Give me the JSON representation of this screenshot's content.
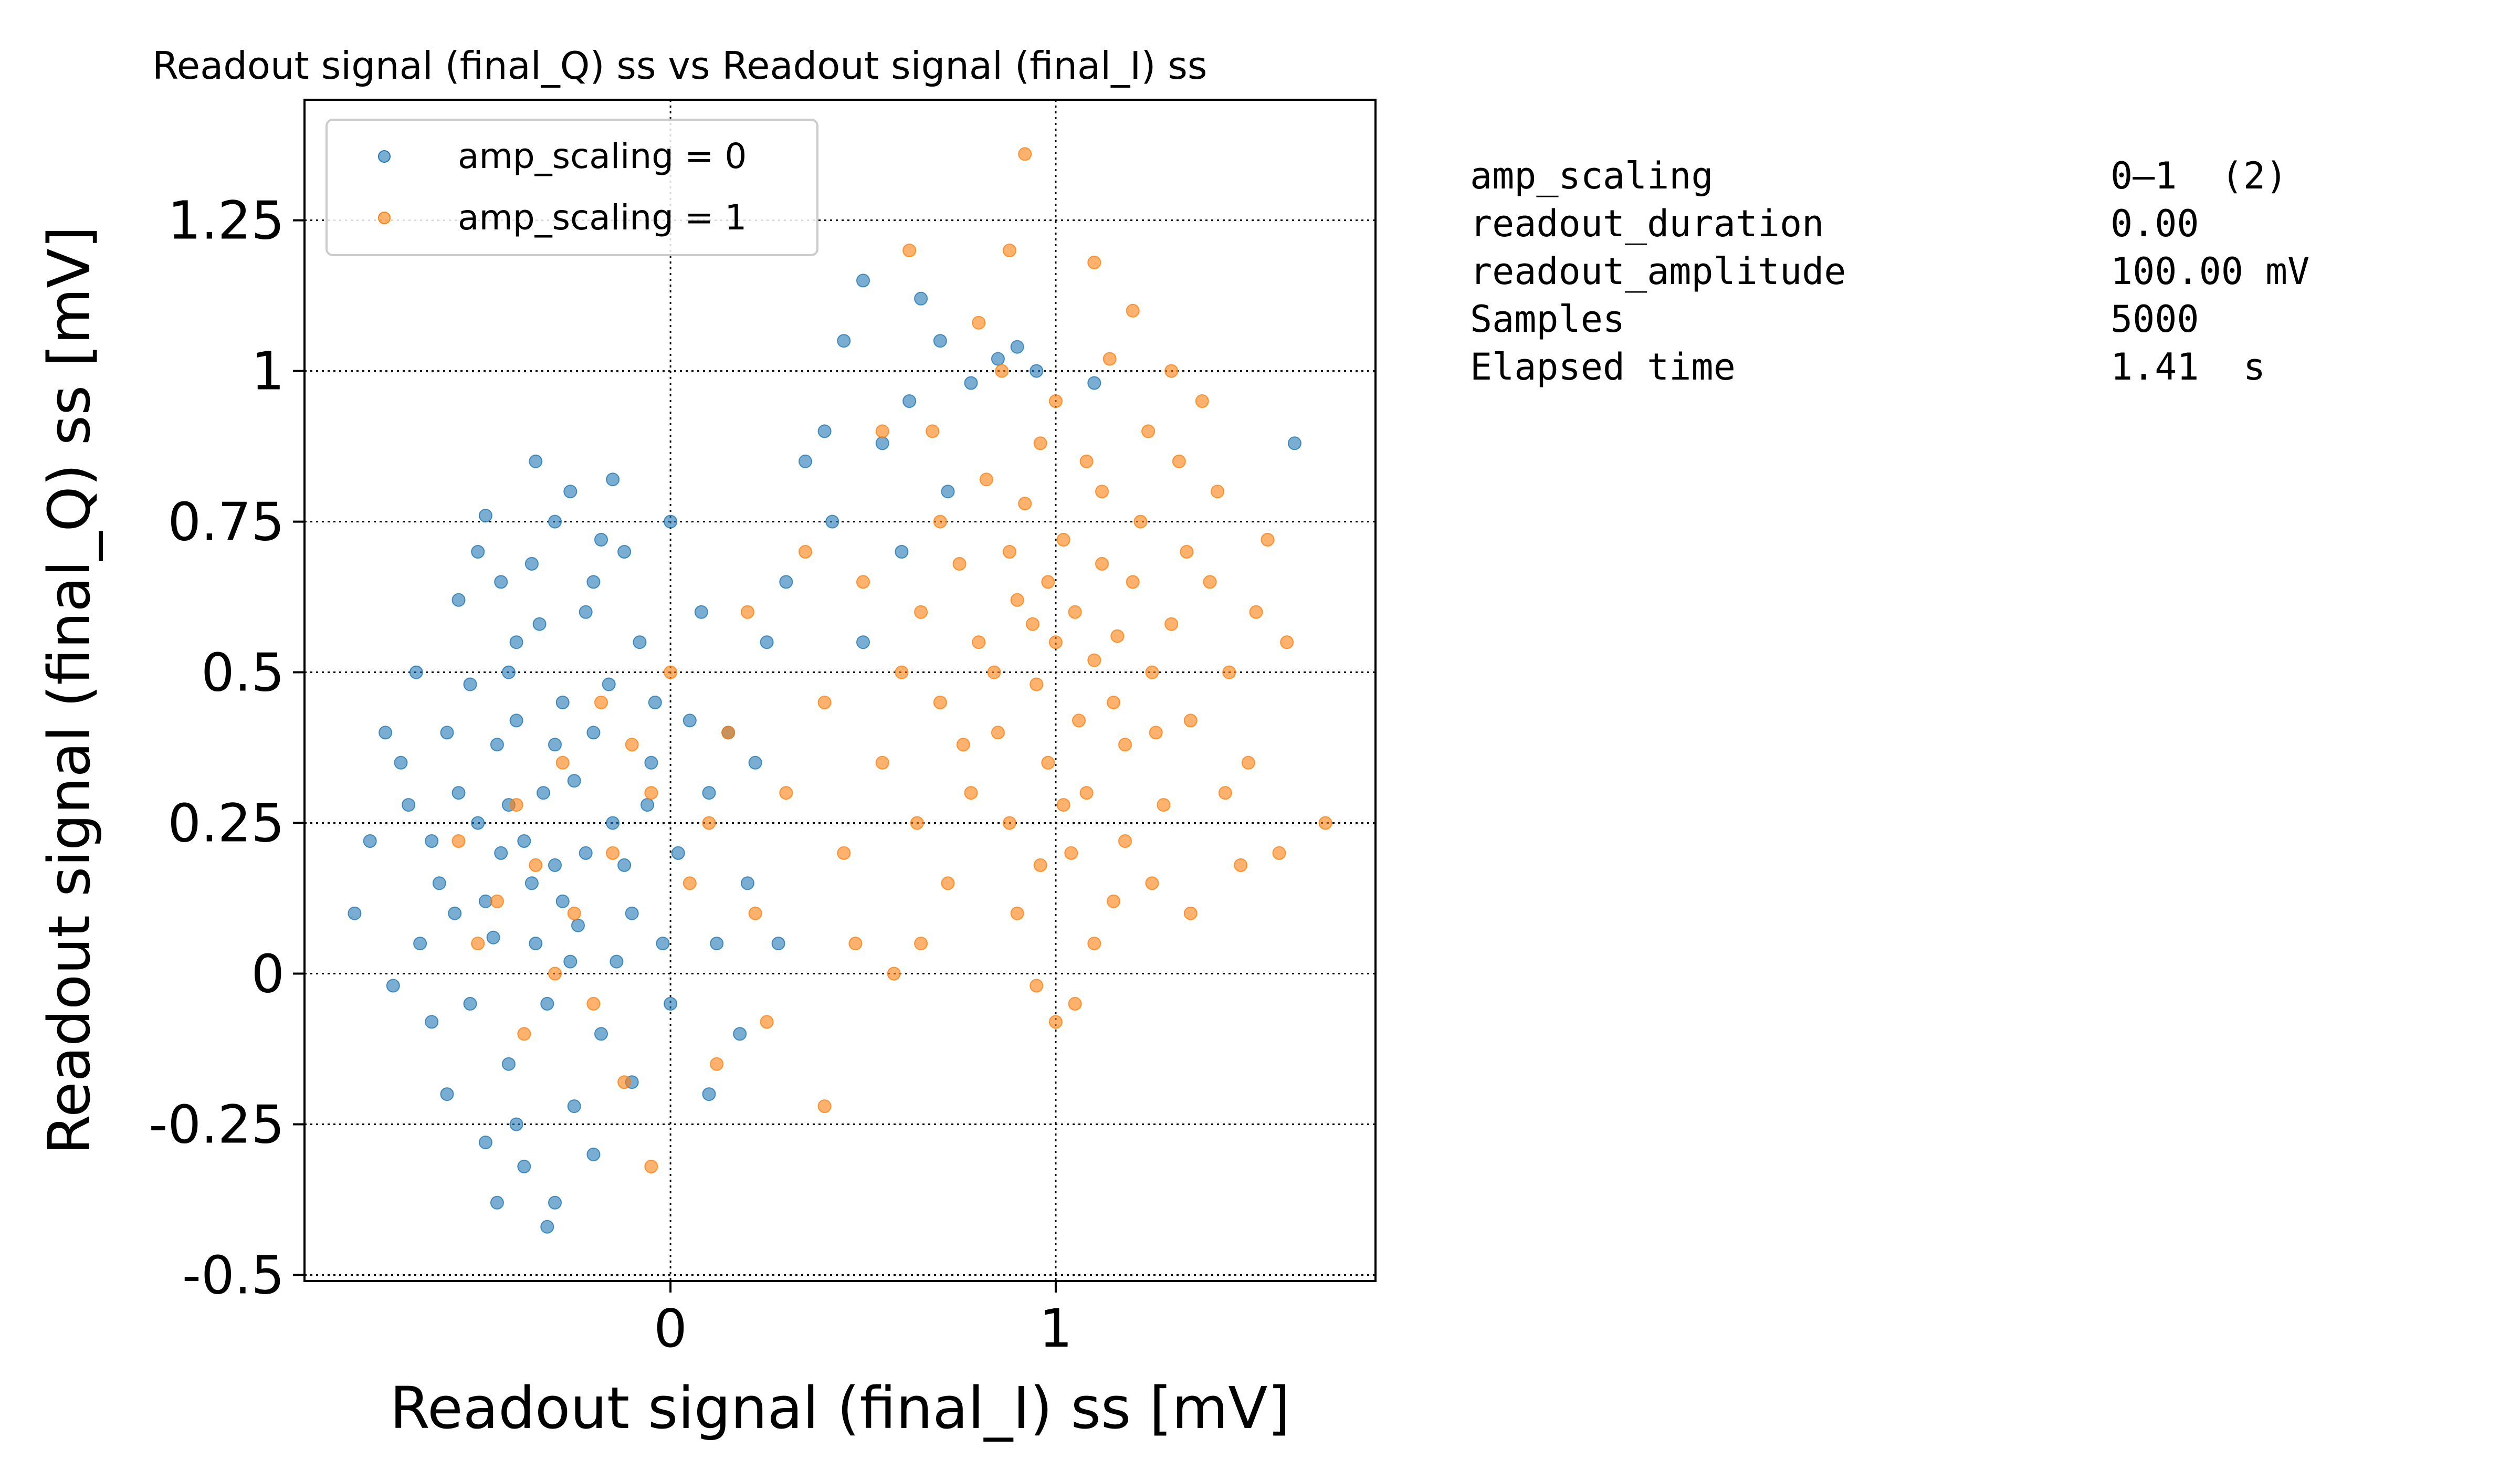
{
  "chart_data": {
    "type": "scatter",
    "title": "Readout signal (final_Q) ss vs Readout signal (final_I) ss",
    "xlabel": "Readout signal (final_I) ss [mV]",
    "ylabel": "Readout signal (final_Q) ss [mV]",
    "xlim": [
      -0.95,
      1.83
    ],
    "ylim": [
      -0.51,
      1.45
    ],
    "xticks": [
      {
        "v": 0,
        "label": "0"
      },
      {
        "v": 1,
        "label": "1"
      }
    ],
    "yticks": [
      {
        "v": -0.5,
        "label": "-0.5"
      },
      {
        "v": -0.25,
        "label": "-0.25"
      },
      {
        "v": 0,
        "label": "0"
      },
      {
        "v": 0.25,
        "label": "0.25"
      },
      {
        "v": 0.5,
        "label": "0.5"
      },
      {
        "v": 0.75,
        "label": "0.75"
      },
      {
        "v": 1,
        "label": "1"
      },
      {
        "v": 1.25,
        "label": "1.25"
      }
    ],
    "grid": true,
    "legend_position": "top-left",
    "series": [
      {
        "name": "amp_scaling = 0",
        "color": "#1f77b4",
        "points": [
          [
            -0.38,
            0.22
          ],
          [
            -0.42,
            0.28
          ],
          [
            -0.3,
            0.18
          ],
          [
            -0.25,
            0.32
          ],
          [
            -0.48,
            0.12
          ],
          [
            -0.2,
            0.4
          ],
          [
            -0.35,
            0.05
          ],
          [
            -0.55,
            0.3
          ],
          [
            -0.15,
            0.25
          ],
          [
            -0.28,
            0.45
          ],
          [
            -0.45,
            0.38
          ],
          [
            -0.6,
            0.15
          ],
          [
            -0.1,
            0.1
          ],
          [
            -0.32,
            -0.05
          ],
          [
            -0.4,
            0.55
          ],
          [
            -0.22,
            0.6
          ],
          [
            -0.52,
            0.48
          ],
          [
            -0.05,
            0.35
          ],
          [
            -0.65,
            0.05
          ],
          [
            -0.18,
            -0.1
          ],
          [
            -0.36,
            0.68
          ],
          [
            -0.3,
            0.75
          ],
          [
            -0.48,
            0.76
          ],
          [
            -0.42,
            -0.15
          ],
          [
            -0.25,
            -0.22
          ],
          [
            -0.7,
            0.35
          ],
          [
            -0.78,
            0.22
          ],
          [
            -0.82,
            0.1
          ],
          [
            -0.62,
            -0.08
          ],
          [
            -0.08,
            0.55
          ],
          [
            0.02,
            0.2
          ],
          [
            0.05,
            0.42
          ],
          [
            0.1,
            0.3
          ],
          [
            -0.12,
            0.7
          ],
          [
            -0.55,
            0.62
          ],
          [
            -0.38,
            -0.32
          ],
          [
            -0.3,
            -0.38
          ],
          [
            -0.45,
            -0.38
          ],
          [
            -0.2,
            -0.3
          ],
          [
            -0.1,
            -0.18
          ],
          [
            0.0,
            -0.05
          ],
          [
            0.12,
            0.05
          ],
          [
            -0.58,
            -0.2
          ],
          [
            -0.72,
            -0.02
          ],
          [
            -0.66,
            0.5
          ],
          [
            -0.5,
            0.7
          ],
          [
            -0.35,
            0.85
          ],
          [
            -0.15,
            0.82
          ],
          [
            0.0,
            0.75
          ],
          [
            0.08,
            0.6
          ],
          [
            0.15,
            0.4
          ],
          [
            0.2,
            0.15
          ],
          [
            0.25,
            0.55
          ],
          [
            0.3,
            0.65
          ],
          [
            0.35,
            0.85
          ],
          [
            0.42,
            0.75
          ],
          [
            0.5,
            0.55
          ],
          [
            0.55,
            0.88
          ],
          [
            0.62,
            0.95
          ],
          [
            0.7,
            1.05
          ],
          [
            0.45,
            1.05
          ],
          [
            0.5,
            1.15
          ],
          [
            0.65,
            1.12
          ],
          [
            0.78,
            0.98
          ],
          [
            0.85,
            1.02
          ],
          [
            0.4,
            0.9
          ],
          [
            0.22,
            0.35
          ],
          [
            0.28,
            0.05
          ],
          [
            0.18,
            -0.1
          ],
          [
            0.1,
            -0.2
          ],
          [
            -0.28,
            0.12
          ],
          [
            -0.33,
            0.3
          ],
          [
            -0.44,
            0.2
          ],
          [
            -0.24,
            0.08
          ],
          [
            -0.16,
            0.48
          ],
          [
            -0.4,
            0.42
          ],
          [
            -0.26,
            0.02
          ],
          [
            -0.5,
            0.25
          ],
          [
            -0.12,
            0.18
          ],
          [
            -0.34,
            0.58
          ],
          [
            -0.46,
            0.06
          ],
          [
            -0.06,
            0.28
          ],
          [
            -0.58,
            0.4
          ],
          [
            -0.2,
            0.65
          ],
          [
            -0.36,
            0.15
          ],
          [
            -0.3,
            0.38
          ],
          [
            -0.52,
            -0.05
          ],
          [
            -0.14,
            0.02
          ],
          [
            -0.42,
            0.5
          ],
          [
            -0.22,
            0.2
          ],
          [
            1.62,
            0.88
          ],
          [
            0.95,
            1.0
          ],
          [
            1.1,
            0.98
          ],
          [
            0.9,
            1.04
          ],
          [
            0.72,
            0.8
          ],
          [
            0.6,
            0.7
          ],
          [
            -0.62,
            0.22
          ],
          [
            -0.56,
            0.1
          ],
          [
            -0.68,
            0.28
          ],
          [
            -0.74,
            0.4
          ],
          [
            -0.04,
            0.45
          ],
          [
            -0.02,
            0.05
          ],
          [
            -0.4,
            -0.25
          ],
          [
            -0.32,
            -0.42
          ],
          [
            -0.48,
            -0.28
          ],
          [
            -0.18,
            0.72
          ],
          [
            -0.26,
            0.8
          ],
          [
            -0.44,
            0.65
          ]
        ]
      },
      {
        "name": "amp_scaling = 1",
        "color": "#ff7f0e",
        "points": [
          [
            1.0,
            0.55
          ],
          [
            1.05,
            0.6
          ],
          [
            0.95,
            0.48
          ],
          [
            1.1,
            0.52
          ],
          [
            0.9,
            0.62
          ],
          [
            1.15,
            0.45
          ],
          [
            0.85,
            0.4
          ],
          [
            1.2,
            0.65
          ],
          [
            0.98,
            0.35
          ],
          [
            1.02,
            0.72
          ],
          [
            0.8,
            0.55
          ],
          [
            1.25,
            0.5
          ],
          [
            0.92,
            0.78
          ],
          [
            1.08,
            0.3
          ],
          [
            0.75,
            0.68
          ],
          [
            1.3,
            0.58
          ],
          [
            1.12,
            0.8
          ],
          [
            0.88,
            0.25
          ],
          [
            1.18,
            0.38
          ],
          [
            0.7,
            0.45
          ],
          [
            1.35,
            0.42
          ],
          [
            0.96,
            0.88
          ],
          [
            1.04,
            0.2
          ],
          [
            0.82,
            0.82
          ],
          [
            1.22,
            0.75
          ],
          [
            0.65,
            0.6
          ],
          [
            1.4,
            0.65
          ],
          [
            1.0,
            0.95
          ],
          [
            0.78,
            0.3
          ],
          [
            1.28,
            0.28
          ],
          [
            0.6,
            0.5
          ],
          [
            1.45,
            0.5
          ],
          [
            0.9,
            0.1
          ],
          [
            1.1,
            0.05
          ],
          [
            0.72,
            0.15
          ],
          [
            1.32,
            0.85
          ],
          [
            0.86,
            1.0
          ],
          [
            1.14,
            1.02
          ],
          [
            1.5,
            0.35
          ],
          [
            0.55,
            0.35
          ],
          [
            1.55,
            0.72
          ],
          [
            0.5,
            0.65
          ],
          [
            1.05,
            -0.05
          ],
          [
            0.95,
            -0.02
          ],
          [
            0.68,
            0.9
          ],
          [
            1.38,
            0.95
          ],
          [
            1.2,
            1.1
          ],
          [
            0.8,
            1.08
          ],
          [
            0.92,
            1.36
          ],
          [
            0.88,
            1.2
          ],
          [
            1.1,
            1.18
          ],
          [
            0.62,
            1.2
          ],
          [
            1.6,
            0.55
          ],
          [
            1.7,
            0.25
          ],
          [
            1.58,
            0.2
          ],
          [
            0.45,
            0.2
          ],
          [
            0.4,
            0.45
          ],
          [
            0.3,
            0.3
          ],
          [
            0.22,
            0.1
          ],
          [
            0.15,
            0.4
          ],
          [
            0.1,
            0.25
          ],
          [
            0.05,
            0.15
          ],
          [
            -0.05,
            0.3
          ],
          [
            -0.15,
            0.2
          ],
          [
            -0.25,
            0.1
          ],
          [
            -0.35,
            0.18
          ],
          [
            -0.3,
            0.0
          ],
          [
            -0.2,
            -0.05
          ],
          [
            -0.4,
            0.28
          ],
          [
            -0.45,
            0.12
          ],
          [
            -0.1,
            0.38
          ],
          [
            0.0,
            0.5
          ],
          [
            -0.28,
            0.35
          ],
          [
            -0.38,
            -0.1
          ],
          [
            -0.5,
            0.05
          ],
          [
            -0.55,
            0.22
          ],
          [
            -0.18,
            0.45
          ],
          [
            0.2,
            0.6
          ],
          [
            0.35,
            0.7
          ],
          [
            0.25,
            -0.08
          ],
          [
            0.4,
            -0.22
          ],
          [
            0.12,
            -0.15
          ],
          [
            -0.05,
            -0.32
          ],
          [
            -0.12,
            -0.18
          ],
          [
            0.48,
            0.05
          ],
          [
            0.55,
            0.9
          ],
          [
            0.58,
            0.0
          ],
          [
            0.65,
            0.05
          ],
          [
            1.0,
            -0.08
          ],
          [
            1.15,
            0.12
          ],
          [
            1.25,
            0.15
          ],
          [
            1.35,
            0.1
          ],
          [
            1.48,
            0.18
          ],
          [
            1.52,
            0.6
          ],
          [
            1.42,
            0.8
          ],
          [
            1.3,
            1.0
          ],
          [
            1.24,
            0.9
          ],
          [
            0.98,
            0.65
          ],
          [
            1.06,
            0.42
          ],
          [
            0.94,
            0.58
          ],
          [
            1.12,
            0.68
          ],
          [
            1.02,
            0.28
          ],
          [
            0.84,
            0.5
          ],
          [
            1.16,
            0.56
          ],
          [
            0.76,
            0.38
          ],
          [
            1.26,
            0.4
          ],
          [
            0.88,
            0.7
          ],
          [
            1.08,
            0.85
          ],
          [
            0.96,
            0.18
          ],
          [
            1.18,
            0.22
          ],
          [
            0.7,
            0.75
          ],
          [
            1.34,
            0.7
          ],
          [
            0.64,
            0.25
          ],
          [
            1.44,
            0.3
          ]
        ]
      }
    ]
  },
  "info": [
    {
      "key": "amp_scaling",
      "value": "0–1  (2)"
    },
    {
      "key": "readout_duration",
      "value": "0.00"
    },
    {
      "key": "readout_amplitude",
      "value": "100.00 mV"
    },
    {
      "key": "Samples",
      "value": "5000"
    },
    {
      "key": "Elapsed time",
      "value": "1.41  s"
    }
  ]
}
